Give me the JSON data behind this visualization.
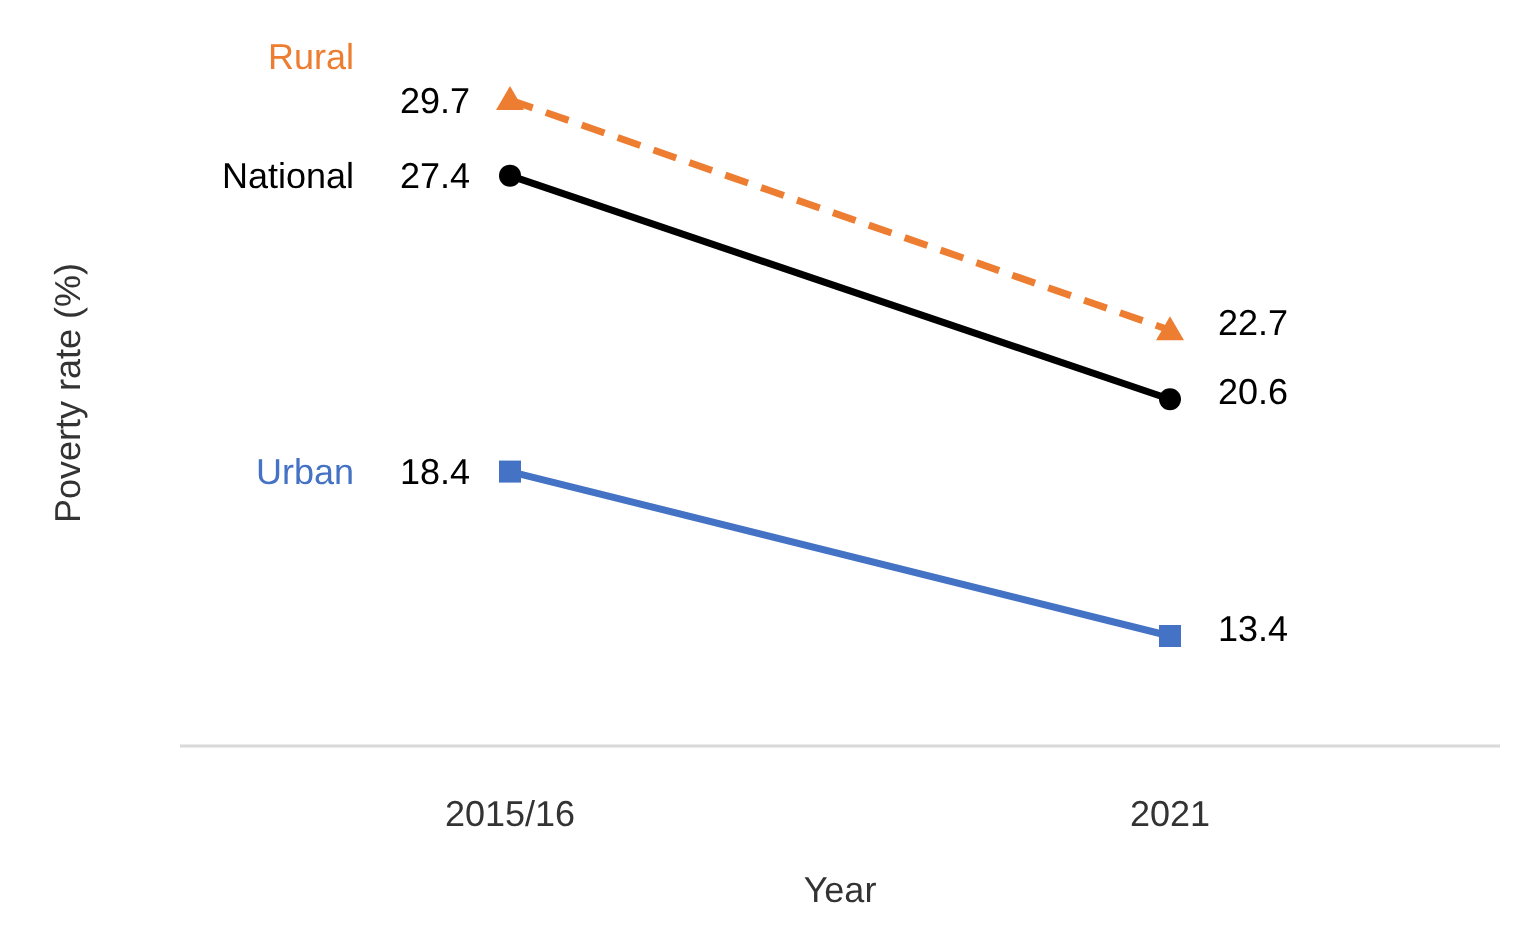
{
  "chart_data": {
    "type": "line",
    "xlabel": "Year",
    "ylabel": "Poverty rate (%)",
    "categories": [
      "2015/16",
      "2021"
    ],
    "data_labels": true,
    "series": [
      {
        "name": "Rural",
        "color": "#ed7d31",
        "values": [
          29.7,
          22.7
        ],
        "marker": "triangle",
        "line_style": "dashed"
      },
      {
        "name": "National",
        "color": "#000000",
        "values": [
          27.4,
          20.6
        ],
        "marker": "circle",
        "line_style": "solid"
      },
      {
        "name": "Urban",
        "color": "#4472c4",
        "values": [
          18.4,
          13.4
        ],
        "marker": "square",
        "line_style": "solid"
      }
    ]
  }
}
